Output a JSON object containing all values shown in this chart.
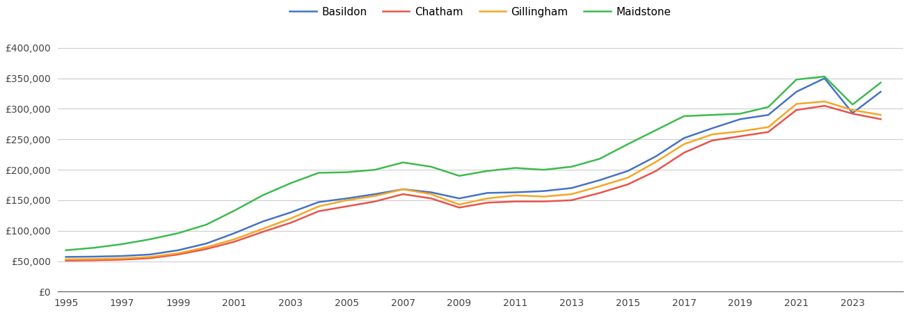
{
  "years": [
    1995,
    1996,
    1997,
    1998,
    1999,
    2000,
    2001,
    2002,
    2003,
    2004,
    2005,
    2006,
    2007,
    2008,
    2009,
    2010,
    2011,
    2012,
    2013,
    2014,
    2015,
    2016,
    2017,
    2018,
    2019,
    2020,
    2021,
    2022,
    2023,
    2024
  ],
  "Basildon": [
    57000,
    57500,
    58500,
    61000,
    68000,
    79000,
    96000,
    115000,
    130000,
    147000,
    153000,
    160000,
    168000,
    163000,
    153000,
    162000,
    163000,
    165000,
    170000,
    183000,
    198000,
    222000,
    252000,
    268000,
    283000,
    290000,
    328000,
    350000,
    293000,
    328000
  ],
  "Chatham": [
    51000,
    51500,
    52500,
    55000,
    61000,
    70000,
    82000,
    98000,
    113000,
    132000,
    140000,
    148000,
    160000,
    153000,
    138000,
    146000,
    148000,
    148000,
    150000,
    162000,
    176000,
    198000,
    228000,
    248000,
    255000,
    262000,
    298000,
    305000,
    292000,
    283000
  ],
  "Gillingham": [
    53000,
    53500,
    54500,
    57000,
    63000,
    73000,
    86000,
    103000,
    120000,
    140000,
    150000,
    157000,
    168000,
    160000,
    143000,
    153000,
    158000,
    156000,
    160000,
    173000,
    187000,
    213000,
    242000,
    258000,
    263000,
    270000,
    308000,
    312000,
    298000,
    290000
  ],
  "Maidstone": [
    68000,
    72000,
    78000,
    86000,
    96000,
    110000,
    133000,
    158000,
    178000,
    195000,
    196000,
    200000,
    212000,
    205000,
    190000,
    198000,
    203000,
    200000,
    205000,
    218000,
    242000,
    265000,
    288000,
    290000,
    292000,
    303000,
    348000,
    353000,
    307000,
    343000
  ],
  "colors": {
    "Basildon": "#4472c4",
    "Chatham": "#e8534a",
    "Gillingham": "#f5a623",
    "Maidstone": "#3dba4e"
  },
  "ylim": [
    0,
    420000
  ],
  "yticks": [
    0,
    50000,
    100000,
    150000,
    200000,
    250000,
    300000,
    350000,
    400000
  ],
  "xticks": [
    1995,
    1997,
    1999,
    2001,
    2003,
    2005,
    2007,
    2009,
    2011,
    2013,
    2015,
    2017,
    2019,
    2021,
    2023
  ],
  "xlim_left": 1994.7,
  "xlim_right": 2024.8,
  "background_color": "#ffffff",
  "grid_color": "#cccccc",
  "line_width": 1.8
}
